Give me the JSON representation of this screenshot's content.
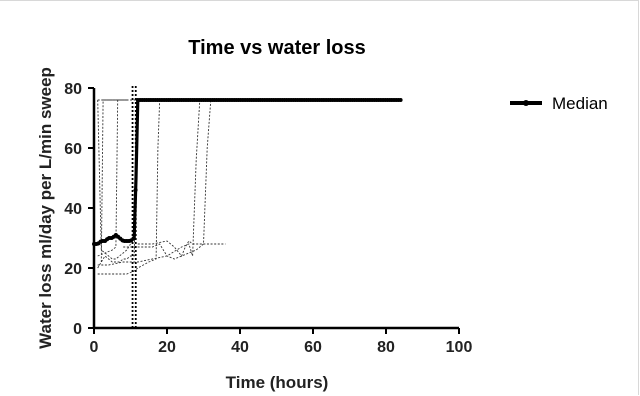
{
  "chart_data": {
    "type": "line",
    "title": "Time vs water loss",
    "xlabel": "Time (hours)",
    "ylabel": "Water loss ml/day per L/min sweep",
    "xlim": [
      0,
      100
    ],
    "ylim": [
      0,
      80
    ],
    "x_ticks": [
      "0",
      "20",
      "40",
      "60",
      "80",
      "100"
    ],
    "y_ticks": [
      "0",
      "20",
      "40",
      "60",
      "80"
    ],
    "legend_position": "top-right",
    "grid": false,
    "vertical_marker_x": 11,
    "series": [
      {
        "name": "Median",
        "style": "bold-solid-with-markers",
        "color": "#000000",
        "x": [
          0,
          1,
          2,
          3,
          4,
          5,
          6,
          7,
          8,
          9,
          10,
          11,
          11.5,
          12,
          13,
          20,
          30,
          40,
          50,
          60,
          70,
          80,
          84
        ],
        "y": [
          28,
          28,
          29,
          29,
          30,
          30,
          31,
          30,
          29,
          29,
          29,
          30,
          50,
          76,
          76,
          76,
          76,
          76,
          76,
          76,
          76,
          76,
          76
        ]
      },
      {
        "style": "dashed-thin",
        "color": "#333333",
        "x": [
          1,
          2,
          3,
          4,
          5,
          6,
          7,
          8,
          9,
          10,
          11,
          12
        ],
        "y": [
          20,
          22,
          24,
          23,
          22,
          22,
          22,
          23,
          23,
          24,
          24,
          76
        ]
      },
      {
        "style": "dashed-thin",
        "color": "#333333",
        "x": [
          1,
          2,
          3,
          4,
          5,
          6,
          7,
          8,
          9,
          10
        ],
        "y": [
          76,
          26,
          25,
          24,
          23,
          23,
          24,
          25,
          26,
          28
        ]
      },
      {
        "style": "dashed-thin",
        "color": "#333333",
        "x": [
          2,
          2.5,
          3,
          4,
          5,
          6,
          7,
          8,
          9
        ],
        "y": [
          22,
          76,
          76,
          76,
          76,
          76,
          76,
          76,
          76
        ]
      },
      {
        "style": "dashed-thin",
        "color": "#333333",
        "x": [
          1,
          3,
          5,
          6,
          6.5,
          7,
          8
        ],
        "y": [
          24,
          25,
          26,
          27,
          76,
          76,
          76
        ]
      },
      {
        "style": "dashed-thin",
        "color": "#333333",
        "x": [
          1,
          3,
          5,
          7,
          9,
          11,
          12,
          15,
          17,
          17.5,
          18,
          19
        ],
        "y": [
          18,
          18,
          18,
          18,
          18,
          19,
          20,
          22,
          23,
          60,
          76,
          76
        ]
      },
      {
        "style": "dashed-thin",
        "color": "#333333",
        "x": [
          1,
          4,
          8,
          12,
          16,
          20,
          24,
          26,
          27,
          28,
          29
        ],
        "y": [
          21,
          21,
          22,
          22,
          23,
          24,
          27,
          28,
          24,
          56,
          76
        ]
      },
      {
        "style": "dashed-thin",
        "color": "#333333",
        "x": [
          8,
          12,
          16,
          18,
          20,
          22,
          24,
          26,
          28,
          30,
          31,
          32
        ],
        "y": [
          27,
          27,
          27,
          28,
          24,
          23,
          24,
          25,
          26,
          28,
          60,
          76
        ]
      },
      {
        "style": "dashed-thin",
        "color": "#333333",
        "x": [
          12,
          16,
          20,
          22,
          24,
          25,
          26,
          27,
          28,
          30,
          32,
          34,
          36
        ],
        "y": [
          28,
          28,
          29,
          27,
          24,
          27,
          29,
          28,
          28,
          28,
          28,
          28,
          28
        ]
      },
      {
        "style": "dashed-thin",
        "color": "#333333",
        "x": [
          1,
          12
        ],
        "y": [
          76,
          76
        ]
      }
    ]
  }
}
